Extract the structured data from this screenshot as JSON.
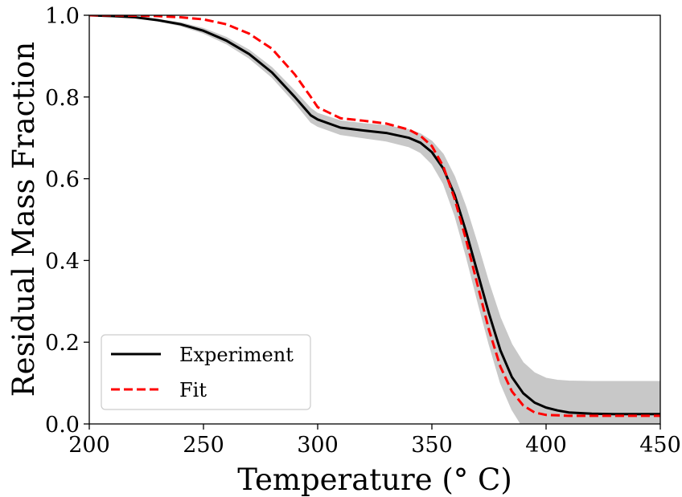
{
  "chart_data": {
    "type": "line",
    "title": "",
    "xlabel": "Temperature (° C)",
    "ylabel": "Residual Mass Fraction",
    "xlim": [
      200,
      450
    ],
    "ylim": [
      0.0,
      1.0
    ],
    "xticks": [
      "200",
      "250",
      "300",
      "350",
      "400",
      "450"
    ],
    "yticks": [
      "0.0",
      "0.2",
      "0.4",
      "0.6",
      "0.8",
      "1.0"
    ],
    "grid": false,
    "legend_position": "lower-left",
    "x": [
      200,
      210,
      220,
      230,
      240,
      250,
      260,
      270,
      280,
      290,
      297,
      300,
      310,
      320,
      330,
      340,
      345,
      350,
      355,
      360,
      365,
      370,
      375,
      380,
      385,
      390,
      395,
      400,
      405,
      410,
      420,
      430,
      440,
      450
    ],
    "series": [
      {
        "name": "Experiment",
        "color": "#000000",
        "style": "solid",
        "values": [
          1.0,
          0.998,
          0.995,
          0.988,
          0.978,
          0.962,
          0.938,
          0.905,
          0.86,
          0.8,
          0.755,
          0.745,
          0.725,
          0.718,
          0.712,
          0.7,
          0.688,
          0.665,
          0.625,
          0.56,
          0.47,
          0.37,
          0.27,
          0.18,
          0.115,
          0.075,
          0.052,
          0.04,
          0.033,
          0.028,
          0.025,
          0.024,
          0.024,
          0.024
        ]
      },
      {
        "name": "Fit",
        "color": "#ff0000",
        "style": "dashed",
        "values": [
          1.0,
          1.0,
          0.999,
          0.998,
          0.995,
          0.99,
          0.978,
          0.955,
          0.918,
          0.855,
          0.8,
          0.775,
          0.748,
          0.742,
          0.735,
          0.72,
          0.705,
          0.68,
          0.63,
          0.55,
          0.45,
          0.34,
          0.23,
          0.14,
          0.08,
          0.045,
          0.028,
          0.022,
          0.021,
          0.02,
          0.02,
          0.02,
          0.02,
          0.02
        ]
      }
    ],
    "band": {
      "color": "#c8c8c8",
      "upper": [
        1.0,
        0.998,
        0.995,
        0.99,
        0.982,
        0.968,
        0.946,
        0.915,
        0.872,
        0.815,
        0.772,
        0.76,
        0.742,
        0.735,
        0.73,
        0.72,
        0.71,
        0.692,
        0.66,
        0.605,
        0.53,
        0.44,
        0.345,
        0.26,
        0.195,
        0.15,
        0.125,
        0.112,
        0.107,
        0.105,
        0.104,
        0.104,
        0.104,
        0.104
      ],
      "lower": [
        1.0,
        0.998,
        0.994,
        0.986,
        0.974,
        0.956,
        0.93,
        0.895,
        0.848,
        0.786,
        0.738,
        0.728,
        0.708,
        0.7,
        0.692,
        0.678,
        0.664,
        0.636,
        0.588,
        0.51,
        0.41,
        0.3,
        0.195,
        0.1,
        0.035,
        -0.01,
        -0.03,
        -0.04,
        -0.04,
        -0.04,
        -0.04,
        -0.04,
        -0.04,
        -0.04
      ]
    }
  }
}
